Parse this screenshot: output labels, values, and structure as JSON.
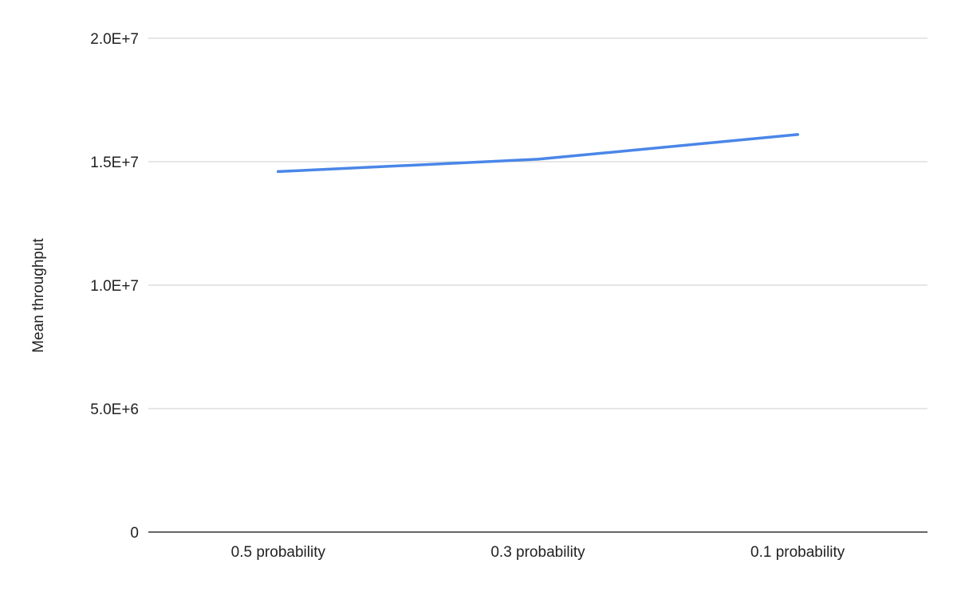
{
  "chart_data": {
    "type": "line",
    "title": "",
    "xlabel": "",
    "ylabel": "Mean throughput",
    "categories": [
      "0.5 probability",
      "0.3 probability",
      "0.1 probability"
    ],
    "series": [
      {
        "values": [
          14600000,
          15100000,
          16100000
        ],
        "color": "#4a86e8"
      }
    ],
    "ylim": [
      0,
      20000000
    ],
    "yticks": [
      {
        "value": 0,
        "label": "0"
      },
      {
        "value": 5000000,
        "label": "5.0E+6"
      },
      {
        "value": 10000000,
        "label": "1.0E+7"
      },
      {
        "value": 15000000,
        "label": "1.5E+7"
      },
      {
        "value": 20000000,
        "label": "2.0E+7"
      }
    ],
    "grid": true,
    "legend": "none",
    "gridline_color": "#cccccc",
    "axis_color": "#333333"
  }
}
